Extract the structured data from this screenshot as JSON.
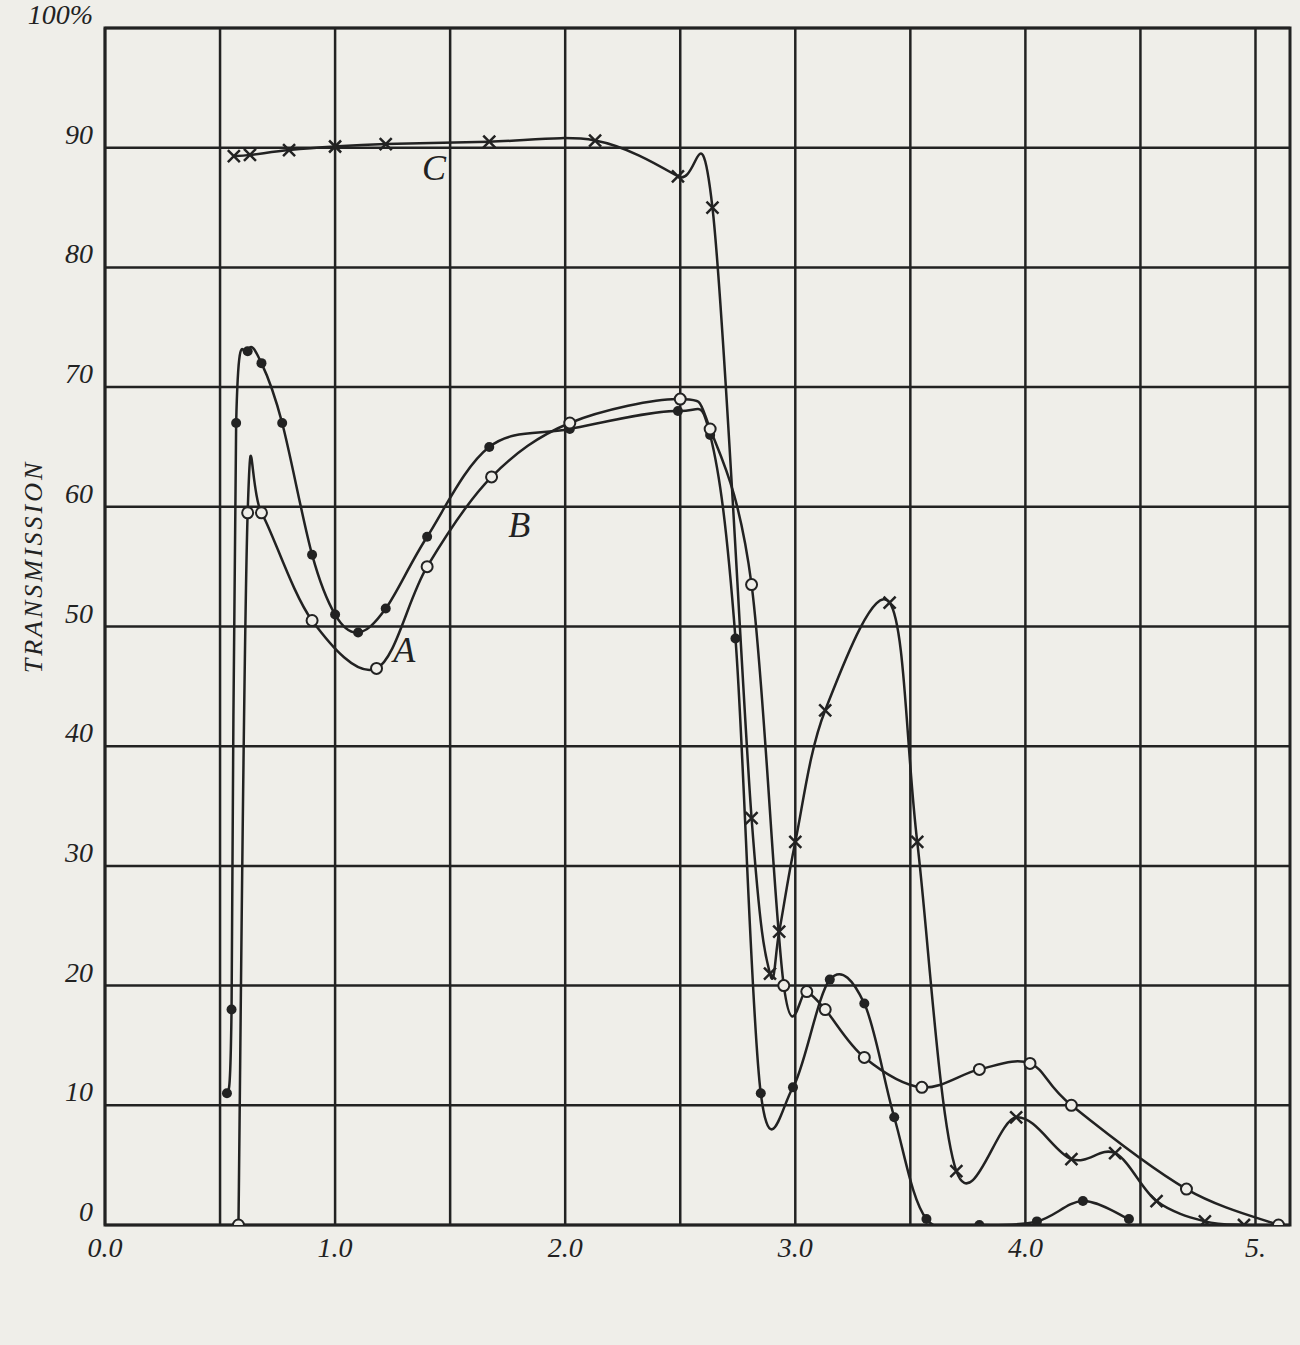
{
  "chart_data": {
    "type": "line",
    "y_label": "TRANSMISSION",
    "xlim": [
      0,
      5.15
    ],
    "ylim": [
      0,
      100
    ],
    "xticks": [
      {
        "value": 0,
        "label": "0.0"
      },
      {
        "value": 1,
        "label": "1.0"
      },
      {
        "value": 2,
        "label": "2.0"
      },
      {
        "value": 3,
        "label": "3.0"
      },
      {
        "value": 4,
        "label": "4.0"
      },
      {
        "value": 5,
        "label": "5."
      }
    ],
    "yticks": [
      0,
      10,
      20,
      30,
      40,
      50,
      60,
      70,
      80,
      90,
      {
        "value": 100,
        "label": "100%"
      }
    ],
    "grid": true,
    "color": "#222222",
    "series": [
      {
        "marker": "x",
        "line_style": "solid",
        "color": "#222222",
        "x": [
          0.56,
          0.63,
          0.8,
          1.0,
          1.22,
          1.67,
          2.13,
          2.49,
          2.64,
          2.81,
          2.89,
          2.93,
          3.0,
          3.13,
          3.41,
          3.53,
          3.7,
          3.96,
          4.2,
          4.39,
          4.57,
          4.78,
          4.95
        ],
        "values": [
          89.3,
          89.4,
          89.8,
          90.1,
          90.3,
          90.5,
          90.6,
          87.6,
          85,
          34,
          21,
          24.5,
          32,
          43,
          52,
          32,
          4.5,
          9,
          5.5,
          6,
          2,
          0.3,
          0
        ]
      },
      {
        "marker": "dot",
        "line_style": "solid",
        "color": "#222222",
        "x": [
          0.53,
          0.55,
          0.57,
          0.62,
          0.68,
          0.77,
          0.9,
          1.0,
          1.1,
          1.22,
          1.4,
          1.67,
          2.02,
          2.49,
          2.63,
          2.74,
          2.85,
          2.99,
          3.15,
          3.3,
          3.43,
          3.57,
          3.8,
          4.05,
          4.25,
          4.45
        ],
        "values": [
          11,
          18,
          67,
          73,
          72,
          67,
          56,
          51,
          49.5,
          51.5,
          57.5,
          65,
          66.5,
          68,
          66,
          49,
          11,
          11.5,
          20.5,
          18.5,
          9,
          0.5,
          0,
          0.3,
          2,
          0.5
        ]
      },
      {
        "marker": "circle",
        "line_style": "solid",
        "color": "#222222",
        "x": [
          0.58,
          0.62,
          0.68,
          0.9,
          1.18,
          1.4,
          1.68,
          2.02,
          2.5,
          2.63,
          2.81,
          2.95,
          3.05,
          3.13,
          3.3,
          3.55,
          3.8,
          4.02,
          4.2,
          4.7,
          5.1
        ],
        "values": [
          0,
          59.5,
          59.5,
          50.5,
          46.5,
          55,
          62.5,
          67,
          69,
          66.5,
          53.5,
          20,
          19.5,
          18,
          14,
          11.5,
          13,
          13.5,
          10,
          3,
          0
        ]
      }
    ],
    "annotations": [
      {
        "text": "C",
        "x": 1.43,
        "y": 87.3
      },
      {
        "text": "B",
        "x": 1.8,
        "y": 57.5
      },
      {
        "text": "A",
        "x": 1.3,
        "y": 47
      }
    ]
  }
}
